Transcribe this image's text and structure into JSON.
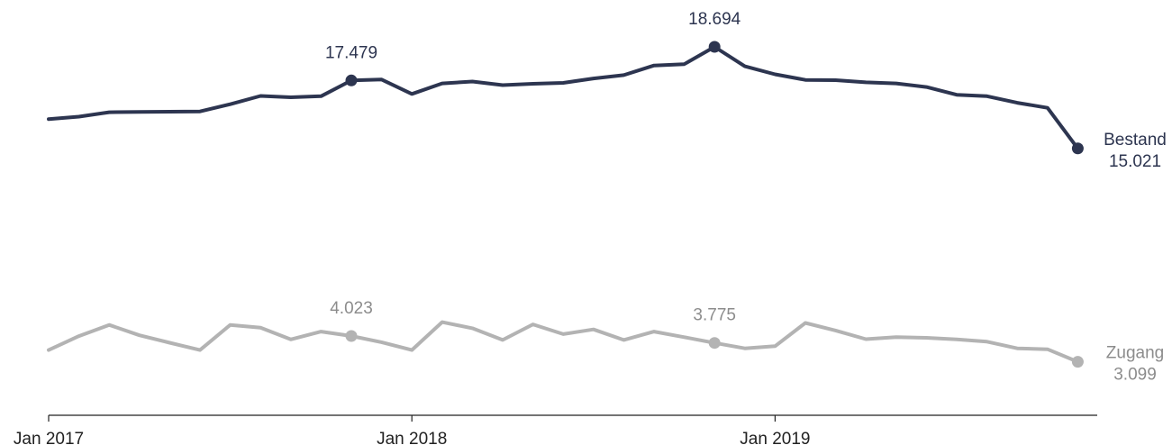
{
  "chart_data": {
    "type": "line",
    "x": [
      "2017-01",
      "2017-02",
      "2017-03",
      "2017-04",
      "2017-05",
      "2017-06",
      "2017-07",
      "2017-08",
      "2017-09",
      "2017-10",
      "2017-11",
      "2017-12",
      "2018-01",
      "2018-02",
      "2018-03",
      "2018-04",
      "2018-05",
      "2018-06",
      "2018-07",
      "2018-08",
      "2018-09",
      "2018-10",
      "2018-11",
      "2018-12",
      "2019-01",
      "2019-02",
      "2019-03",
      "2019-04",
      "2019-05",
      "2019-06",
      "2019-07",
      "2019-08",
      "2019-09",
      "2019-10",
      "2019-11"
    ],
    "x_ticks": [
      {
        "x": "2017-01",
        "label": "Jan 2017"
      },
      {
        "x": "2018-01",
        "label": "Jan 2018"
      },
      {
        "x": "2019-01",
        "label": "Jan 2019"
      }
    ],
    "series": [
      {
        "name": "Bestand",
        "color": "#2d3550",
        "values": [
          16.08,
          16.17,
          16.33,
          16.34,
          16.35,
          16.36,
          16.62,
          16.92,
          16.87,
          16.91,
          17.479,
          17.51,
          16.99,
          17.37,
          17.44,
          17.31,
          17.36,
          17.39,
          17.55,
          17.67,
          18.02,
          18.07,
          18.694,
          17.99,
          17.7,
          17.5,
          17.49,
          17.41,
          17.37,
          17.24,
          16.96,
          16.91,
          16.67,
          16.49,
          15.021
        ],
        "highlights": [
          {
            "x": "2017-11",
            "value": 17.479,
            "label": "17.479"
          },
          {
            "x": "2018-11",
            "value": 18.694,
            "label": "18.694"
          },
          {
            "x": "2019-11",
            "value": 15.021,
            "label": "15.021"
          }
        ]
      },
      {
        "name": "Zugang",
        "color": "#b3b3b3",
        "values": [
          3.52,
          4.02,
          4.42,
          4.05,
          3.78,
          3.52,
          4.42,
          4.32,
          3.9,
          4.18,
          4.023,
          3.8,
          3.52,
          4.52,
          4.3,
          3.88,
          4.44,
          4.09,
          4.26,
          3.88,
          4.18,
          3.98,
          3.775,
          3.58,
          3.66,
          4.49,
          4.22,
          3.91,
          3.98,
          3.96,
          3.9,
          3.82,
          3.58,
          3.55,
          3.099
        ],
        "highlights": [
          {
            "x": "2017-11",
            "value": 4.023,
            "label": "4.023"
          },
          {
            "x": "2018-11",
            "value": 3.775,
            "label": "3.775"
          },
          {
            "x": "2019-11",
            "value": 3.099,
            "label": "3.099"
          }
        ]
      }
    ],
    "grid": false,
    "legend": "inline-right"
  }
}
